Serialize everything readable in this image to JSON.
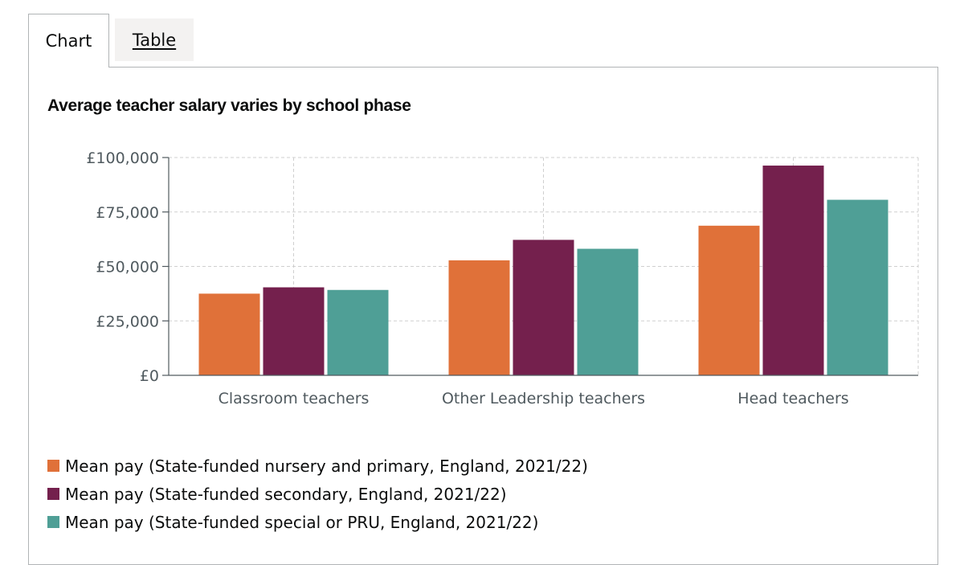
{
  "tabs": [
    {
      "label": "Chart",
      "active": true
    },
    {
      "label": "Table",
      "active": false
    }
  ],
  "chart_data": {
    "type": "bar",
    "title": "Average teacher salary varies by school phase",
    "categories": [
      "Classroom teachers",
      "Other Leadership teachers",
      "Head teachers"
    ],
    "series": [
      {
        "name": "Mean pay (State-funded nursery and primary, England, 2021/22)",
        "color": "#e07139",
        "values": [
          37500,
          52800,
          68700
        ]
      },
      {
        "name": "Mean pay (State-funded secondary, England, 2021/22)",
        "color": "#74204d",
        "values": [
          40400,
          62200,
          96300
        ]
      },
      {
        "name": "Mean pay (State-funded special or PRU, England, 2021/22)",
        "color": "#4f9f96",
        "values": [
          39200,
          58100,
          80600
        ]
      }
    ],
    "ylim": [
      0,
      100000
    ],
    "yticks": [
      0,
      25000,
      50000,
      75000,
      100000
    ],
    "ytick_labels": [
      "£0",
      "£25,000",
      "£50,000",
      "£75,000",
      "£100,000"
    ],
    "xlabel": "",
    "ylabel": "",
    "grid": true,
    "legend_position": "bottom-left"
  }
}
